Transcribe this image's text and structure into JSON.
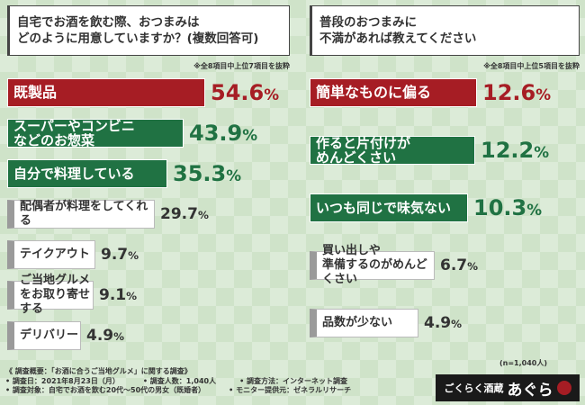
{
  "left": {
    "question": "自宅でお酒を飲む際、おつまみは\nどのように用意していますか？(複数回答可)",
    "note": "※全8項目中上位7項目を抜粋",
    "chart_data": {
      "type": "bar",
      "categories": [
        "既製品",
        "スーパーやコンビニ\nなどのお惣菜",
        "自分で料理している",
        "配偶者が料理をしてくれる",
        "テイクアウト",
        "ご当地グルメをお取り寄せする",
        "デリバリー"
      ],
      "values": [
        54.6,
        43.9,
        35.3,
        29.7,
        9.7,
        9.1,
        4.9
      ],
      "value_labels": [
        "54.6",
        "43.9",
        "35.3",
        "29.7",
        "9.7",
        "9.1",
        "4.9"
      ],
      "styles": [
        "red",
        "green",
        "green",
        "gray",
        "gray",
        "gray",
        "gray"
      ],
      "unit": "%"
    }
  },
  "right": {
    "question": "普段のおつまみに\n不満があれば教えてください",
    "note": "※全8項目中上位5項目を抜粋",
    "chart_data": {
      "type": "bar",
      "categories": [
        "簡単なものに偏る",
        "作ると片付けが\nめんどくさい",
        "いつも同じで味気ない",
        "買い出しや\n準備するのがめんどくさい",
        "品数が少ない"
      ],
      "values": [
        12.6,
        12.2,
        10.3,
        6.7,
        4.9
      ],
      "value_labels": [
        "12.6",
        "12.2",
        "10.3",
        "6.7",
        "4.9"
      ],
      "styles": [
        "red",
        "green",
        "green",
        "gray",
        "gray"
      ],
      "unit": "%"
    },
    "n_size": "(n=1,040人)"
  },
  "footer": {
    "title": "《 調査概要：「お酒に合うご当地グルメ」に関する調査》",
    "date": "• 調査日：2021年8月23日（月）",
    "people": "• 調査人数：1,040人",
    "method": "• 調査方法：インターネット調査",
    "target": "• 調査対象：自宅でお酒を飲む20代～50代の男女（既婚者）",
    "monitor": "• モニター提供元：ゼネラルリサーチ"
  },
  "logo": {
    "prefix": "ごくらく酒蔵",
    "name": "あぐら"
  },
  "colors": {
    "red": "#a61d24",
    "green": "#207243",
    "gray": "#9a9a9a",
    "background": "#cfe3c9"
  }
}
